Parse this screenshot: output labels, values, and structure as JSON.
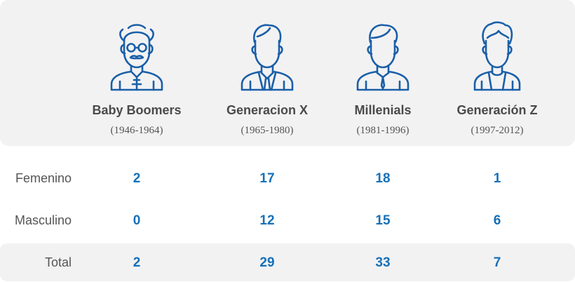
{
  "generations": [
    {
      "name": "Baby Boomers",
      "years": "(1946-1964)",
      "icon": "elderly-man-icon"
    },
    {
      "name": "Generacion X",
      "years": "(1965-1980)",
      "icon": "businessman-icon"
    },
    {
      "name": "Millenials",
      "years": "(1981-1996)",
      "icon": "young-man-icon"
    },
    {
      "name": "Generación Z",
      "years": "(1997-2012)",
      "icon": "teen-icon"
    }
  ],
  "rows": [
    {
      "label": "Femenino",
      "values": [
        "2",
        "17",
        "18",
        "1"
      ]
    },
    {
      "label": "Masculino",
      "values": [
        "0",
        "12",
        "15",
        "6"
      ]
    },
    {
      "label": "Total",
      "values": [
        "2",
        "29",
        "33",
        "7"
      ]
    }
  ],
  "colors": {
    "accent": "#1570b8",
    "icon_stroke": "#1a5fa8",
    "panel": "#f2f2f3",
    "text": "#4a4a4a"
  }
}
